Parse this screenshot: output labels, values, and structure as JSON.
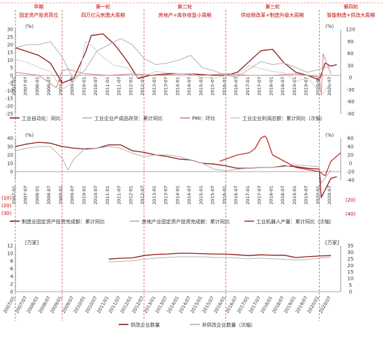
{
  "colors": {
    "dark_red": "#8b1a1a",
    "light_red": "#d98080",
    "gray": "#b3b3b3",
    "black": "#333333",
    "phase_line": "#e05050",
    "phase_text": "#c00000",
    "axis": "#555555"
  },
  "phases": [
    {
      "title": "早期",
      "subtitle": "固定资产投资高位",
      "date": "2007-01"
    },
    {
      "title": "第一轮",
      "subtitle": "四万亿元刺激大周期",
      "date": "2009-01"
    },
    {
      "title": "第二轮",
      "subtitle": "房地产+库存修复小周期",
      "date": "2012-07"
    },
    {
      "title": "第三轮",
      "subtitle": "供给侧改革+制造升级大周期",
      "date": "2016-01"
    },
    {
      "title": "第四轮",
      "subtitle": "智能制造+供改大周期",
      "date": "2020-01"
    }
  ],
  "chart_data": [
    {
      "type": "line",
      "y_unit": "(%)",
      "ylim": [
        -25,
        30
      ],
      "yticks": [
        -25,
        -20,
        -15,
        -10,
        -5,
        0,
        5,
        10,
        15,
        20,
        25,
        30
      ],
      "y2lim": [
        -90,
        120
      ],
      "y2ticks": [
        -90,
        -60,
        -30,
        0,
        30,
        60,
        90,
        120
      ],
      "xticks": [
        "2007-01",
        "2007-07",
        "2008-01",
        "2008-07",
        "2009-01",
        "2009-07",
        "2010-01",
        "2010-07",
        "2011-01",
        "2011-07",
        "2012-01",
        "2012-07",
        "2013-01",
        "2013-07",
        "2014-01",
        "2014-07",
        "2015-01",
        "2015-07",
        "2016-01",
        "2016-07",
        "2017-01",
        "2017-07",
        "2018-01",
        "2018-07",
        "2019-01",
        "2019-07",
        "2020-01",
        "2020-07"
      ],
      "series": [
        {
          "name": "工业自动化：同比",
          "color": "#8b1a1a",
          "axis": "left",
          "x": [
            "2007-01",
            "2008-01",
            "2008-07",
            "2009-01",
            "2009-07",
            "2010-01",
            "2010-04",
            "2010-10",
            "2011-04",
            "2011-10",
            "2012-04",
            "2012-10",
            "2013-07",
            "2014-07",
            "2015-07",
            "2016-01",
            "2016-07",
            "2017-01",
            "2017-07",
            "2018-01",
            "2018-07",
            "2019-01",
            "2019-07",
            "2020-01",
            "2020-04",
            "2020-07",
            "2020-10"
          ],
          "values": [
            18,
            13,
            8,
            -5,
            -2,
            15,
            26,
            27,
            20,
            10,
            -2,
            0,
            1,
            1,
            0,
            0,
            2,
            9,
            16,
            17,
            8,
            2,
            0,
            -3,
            8,
            6,
            7
          ]
        },
        {
          "name": "工业企业产成品存货：累计同比",
          "color": "#b3b3b3",
          "axis": "left",
          "x": [
            "2007-01",
            "2007-07",
            "2008-01",
            "2008-07",
            "2009-01",
            "2009-07",
            "2010-01",
            "2010-07",
            "2011-01",
            "2011-07",
            "2012-01",
            "2012-07",
            "2013-01",
            "2013-07",
            "2014-01",
            "2014-07",
            "2015-01",
            "2015-07",
            "2016-01",
            "2016-07",
            "2017-01",
            "2017-07",
            "2018-01",
            "2018-07",
            "2019-01",
            "2019-07",
            "2020-01",
            "2020-07"
          ],
          "values": [
            18,
            20,
            20,
            22,
            12,
            -3,
            4,
            16,
            20,
            24,
            20,
            11,
            7,
            8,
            10,
            13,
            5,
            3,
            0,
            -1,
            4,
            9,
            7,
            8,
            5,
            2,
            4,
            6
          ]
        },
        {
          "name": "PMI：环比",
          "color": "#d98080",
          "axis": "left",
          "x": [
            "2007-01",
            "2008-01",
            "2008-10",
            "2009-01",
            "2009-04",
            "2010-01",
            "2011-01",
            "2012-01",
            "2013-01",
            "2014-01",
            "2015-01",
            "2016-01",
            "2017-01",
            "2018-01",
            "2019-01",
            "2020-01",
            "2020-02",
            "2020-03",
            "2020-07"
          ],
          "values": [
            2,
            0,
            -8,
            3,
            4,
            1,
            0,
            1,
            0,
            1,
            0,
            1,
            0,
            0,
            1,
            -1,
            -13,
            14,
            1
          ]
        },
        {
          "name": "工业企业利润总额：累计同比（次轴）",
          "color": "#cfcfcf",
          "axis": "right",
          "x": [
            "2007-01",
            "2007-07",
            "2008-01",
            "2008-07",
            "2009-01",
            "2009-04",
            "2009-10",
            "2010-01",
            "2010-04",
            "2010-10",
            "2011-04",
            "2011-10",
            "2012-04",
            "2013-01",
            "2013-07",
            "2014-01",
            "2014-07",
            "2015-01",
            "2015-07",
            "2016-01",
            "2016-07",
            "2017-01",
            "2017-07",
            "2018-01",
            "2018-07",
            "2019-01",
            "2019-07",
            "2020-01",
            "2020-03",
            "2020-07"
          ],
          "values": [
            45,
            38,
            25,
            15,
            -30,
            -20,
            10,
            90,
            80,
            50,
            30,
            25,
            0,
            15,
            12,
            10,
            10,
            0,
            -2,
            5,
            8,
            30,
            22,
            15,
            12,
            -10,
            0,
            -35,
            -40,
            -8
          ]
        }
      ]
    },
    {
      "type": "line",
      "y_unit": "(%)",
      "ylim": [
        -10,
        40
      ],
      "yticks": [
        0,
        10,
        20,
        30,
        40
      ],
      "y2lim": [
        -40,
        60
      ],
      "y2ticks": [
        -40,
        -20,
        0,
        20,
        40,
        60
      ],
      "y_neg_labels": [
        "(10)",
        "(20)",
        "(30)"
      ],
      "y2_neg_labels": [
        "(20)",
        "(40)"
      ],
      "xticks": [
        "2007-01",
        "2007-07",
        "2008-01",
        "2008-07",
        "2009-01",
        "2009-07",
        "2010-01",
        "2010-07",
        "2011-01",
        "2011-07",
        "2012-01",
        "2012-07",
        "2013-01",
        "2013-07",
        "2014-01",
        "2014-07",
        "2015-01",
        "2015-07",
        "2016-01",
        "2016-07",
        "2017-01",
        "2017-07",
        "2018-01",
        "2018-07",
        "2019-01",
        "2019-07",
        "2020-01",
        "2020-07"
      ],
      "series": [
        {
          "name": "制造业固定资产投资完成额：累计同比",
          "color": "#8b1a1a",
          "axis": "left",
          "x": [
            "2007-01",
            "2007-07",
            "2008-01",
            "2008-07",
            "2009-01",
            "2009-07",
            "2010-01",
            "2010-07",
            "2011-01",
            "2011-07",
            "2012-01",
            "2012-07",
            "2013-01",
            "2013-07",
            "2014-01",
            "2014-07",
            "2015-01",
            "2015-07",
            "2016-01",
            "2016-07",
            "2017-01",
            "2017-07",
            "2018-01",
            "2018-07",
            "2019-01",
            "2019-07",
            "2020-01",
            "2020-02",
            "2020-07",
            "2020-10"
          ],
          "values": [
            30,
            33,
            35,
            34,
            30,
            28,
            27,
            28,
            32,
            32,
            25,
            23,
            20,
            18,
            15,
            14,
            10,
            9,
            7,
            4,
            4,
            5,
            5,
            7,
            6,
            4,
            3,
            -31,
            -8,
            -6
          ]
        },
        {
          "name": "房地产业固定资产投资完成额：累计同比",
          "color": "#b3b3b3",
          "axis": "left",
          "x": [
            "2007-01",
            "2007-07",
            "2008-01",
            "2008-07",
            "2009-01",
            "2009-04",
            "2009-07",
            "2010-01",
            "2010-07",
            "2011-01",
            "2011-07",
            "2012-01",
            "2012-07",
            "2013-01",
            "2013-07",
            "2014-01",
            "2014-07",
            "2015-01",
            "2015-07",
            "2016-01",
            "2016-07",
            "2017-01",
            "2017-07",
            "2018-01",
            "2018-07",
            "2019-01",
            "2019-07",
            "2020-01",
            "2020-02",
            "2020-07"
          ],
          "values": [
            25,
            28,
            30,
            30,
            16,
            2,
            15,
            28,
            28,
            30,
            28,
            22,
            18,
            20,
            20,
            18,
            14,
            10,
            3,
            1,
            3,
            4,
            5,
            5,
            6,
            8,
            7,
            6,
            -14,
            2
          ]
        },
        {
          "name": "工业机器人产量：累计同比（次轴）",
          "color": "#c03030",
          "axis": "right",
          "x": [
            "2015-10",
            "2016-01",
            "2016-07",
            "2017-01",
            "2017-04",
            "2017-07",
            "2017-09",
            "2017-10",
            "2018-01",
            "2018-07",
            "2019-01",
            "2019-07",
            "2020-01",
            "2020-04",
            "2020-07",
            "2020-12"
          ],
          "values": [
            5,
            10,
            20,
            25,
            35,
            60,
            65,
            60,
            20,
            5,
            -10,
            -15,
            -20,
            -30,
            5,
            25
          ]
        }
      ]
    },
    {
      "type": "line",
      "y_unit": "[万家]",
      "ylim": [
        0,
        12
      ],
      "yticks": [
        0,
        2,
        4,
        6,
        8,
        10,
        12
      ],
      "y2_unit": "[万家]",
      "y2lim": [
        0,
        35
      ],
      "y2ticks": [
        0,
        5,
        10,
        15,
        20,
        25,
        30,
        35
      ],
      "xticks": [
        "2007/01",
        "2007/07",
        "2008/01",
        "2008/07",
        "2009/01",
        "2009/07",
        "2010/01",
        "2010/07",
        "2011/01",
        "2011/07",
        "2012/01",
        "2012/07",
        "2013/01",
        "2013/07",
        "2014/01",
        "2014/07",
        "2015/01",
        "2015/07",
        "2016/01",
        "2016/07",
        "2017/01",
        "2017/07",
        "2018/01",
        "2018/07",
        "2019/01",
        "2019/07",
        "2020/01",
        "2020/07"
      ],
      "series": [
        {
          "name": "供改企业数量",
          "color": "#8b1a1a",
          "axis": "left",
          "x": [
            "2011/01",
            "2011/07",
            "2012/01",
            "2012/07",
            "2013/01",
            "2013/07",
            "2014/01",
            "2014/07",
            "2015/01",
            "2015/07",
            "2016/01",
            "2016/07",
            "2017/01",
            "2017/07",
            "2018/01",
            "2018/07",
            "2019/01",
            "2019/07",
            "2020/01",
            "2020/07"
          ],
          "values": [
            8.5,
            8.7,
            8.8,
            9.4,
            9.7,
            9.8,
            10.0,
            10.0,
            9.9,
            9.8,
            9.8,
            9.6,
            9.4,
            9.6,
            9.5,
            9.5,
            8.9,
            9.1,
            9.3,
            9.4
          ]
        },
        {
          "name": "非供改企业数量（次轴）",
          "color": "#b3b3b3",
          "axis": "right",
          "x": [
            "2011/01",
            "2011/07",
            "2012/01",
            "2012/07",
            "2013/01",
            "2013/07",
            "2014/01",
            "2014/07",
            "2015/01",
            "2015/07",
            "2016/01",
            "2016/07",
            "2017/01",
            "2017/07",
            "2018/01",
            "2018/07",
            "2019/01",
            "2019/07",
            "2020/01",
            "2020/07"
          ],
          "values": [
            22.5,
            23,
            23.5,
            24.5,
            25.5,
            26,
            26.5,
            26.5,
            26.5,
            26,
            26,
            25.5,
            25,
            25.5,
            25,
            24.5,
            24,
            24.5,
            25.5,
            26
          ]
        }
      ]
    }
  ]
}
